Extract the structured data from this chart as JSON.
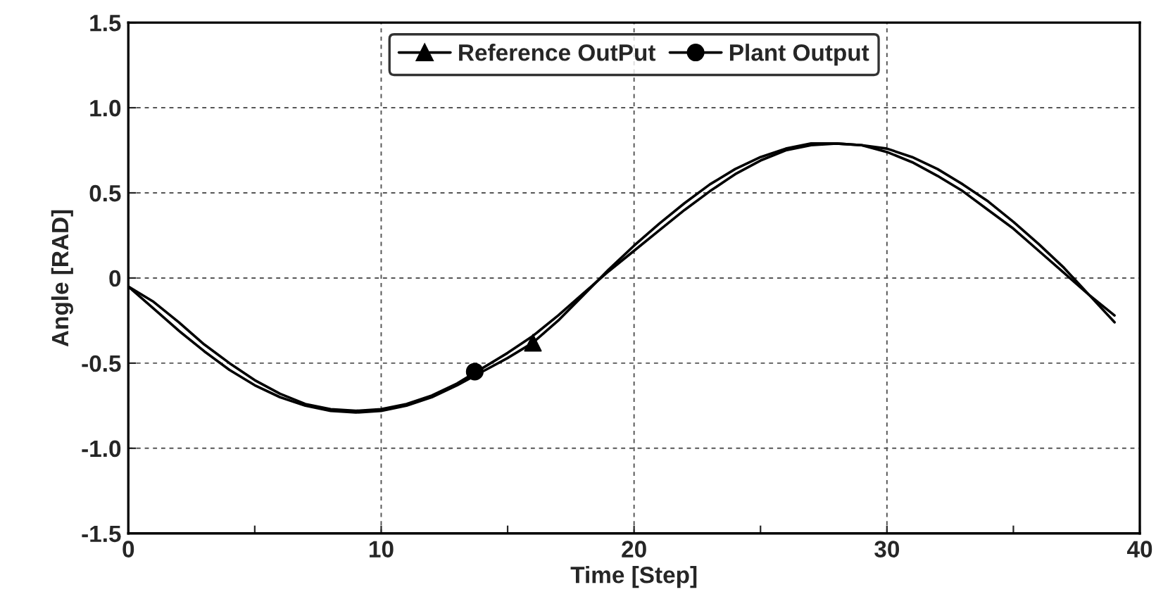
{
  "chart_data": {
    "type": "line",
    "xlabel": "Time [Step]",
    "ylabel": "Angle [RAD]",
    "xlim": [
      0,
      40
    ],
    "ylim": [
      -1.5,
      1.5
    ],
    "xticks": [
      0,
      {
        "value": 5,
        "label": null
      },
      10,
      {
        "value": 15,
        "label": null
      },
      20,
      {
        "value": 25,
        "label": null
      },
      30,
      {
        "value": 35,
        "label": null
      },
      40
    ],
    "yticks": [
      {
        "value": -1.5,
        "label": "-1.5"
      },
      {
        "value": -1.0,
        "label": "-1.0"
      },
      {
        "value": -0.5,
        "label": "-0.5"
      },
      0,
      {
        "value": 0.5,
        "label": "0.5"
      },
      {
        "value": 1.0,
        "label": "1.0"
      },
      {
        "value": 1.5,
        "label": "1.5"
      }
    ],
    "grid": true,
    "legend": "top",
    "line_style": "solid",
    "x": [
      0,
      1,
      2,
      3,
      4,
      5,
      6,
      7,
      8,
      9,
      10,
      11,
      12,
      13,
      14,
      15,
      16,
      17,
      18,
      19,
      20,
      21,
      22,
      23,
      24,
      25,
      26,
      27,
      28,
      29,
      30,
      31,
      32,
      33,
      34,
      35,
      36,
      37,
      38,
      39
    ],
    "series": [
      {
        "color": "#000000",
        "marker": "none",
        "values": [
          -0.05,
          -0.18,
          -0.31,
          -0.43,
          -0.54,
          -0.63,
          -0.7,
          -0.75,
          -0.78,
          -0.79,
          -0.78,
          -0.75,
          -0.7,
          -0.63,
          -0.55,
          -0.47,
          -0.38,
          -0.25,
          -0.1,
          0.05,
          0.19,
          0.32,
          0.44,
          0.55,
          0.64,
          0.71,
          0.76,
          0.79,
          0.79,
          0.78,
          0.74,
          0.68,
          0.6,
          0.51,
          0.4,
          0.29,
          0.16,
          0.03,
          -0.1,
          -0.22
        ]
      },
      {
        "color": "#000000",
        "marker": "none",
        "values": [
          -0.05,
          -0.14,
          -0.26,
          -0.39,
          -0.5,
          -0.6,
          -0.68,
          -0.74,
          -0.77,
          -0.78,
          -0.77,
          -0.74,
          -0.69,
          -0.62,
          -0.53,
          -0.44,
          -0.34,
          -0.22,
          -0.09,
          0.04,
          0.16,
          0.28,
          0.4,
          0.51,
          0.61,
          0.69,
          0.75,
          0.78,
          0.79,
          0.78,
          0.76,
          0.71,
          0.64,
          0.55,
          0.45,
          0.33,
          0.2,
          0.06,
          -0.1,
          -0.26
        ]
      },
      {
        "type": "scatter",
        "name": "Reference OutPut",
        "color": "#000000",
        "marker": "triangle",
        "x": [
          16
        ],
        "values": [
          -0.38
        ]
      },
      {
        "type": "scatter",
        "name": "Plant Output",
        "color": "#000000",
        "marker": "circle",
        "x": [
          13.7
        ],
        "values": [
          -0.55
        ]
      }
    ]
  }
}
